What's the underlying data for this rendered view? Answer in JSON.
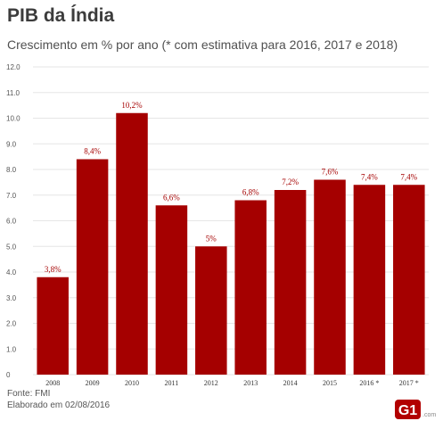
{
  "header": {
    "title": "PIB da Índia",
    "subtitle": "Crescimento em % por ano (* com estimativa para 2016, 2017 e 2018)"
  },
  "footer": {
    "source": "Fonte: FMI",
    "date": "Elaborado em 02/08/2016"
  },
  "brand": {
    "logo_text": "G1",
    "logo_suffix": ".com"
  },
  "colors": {
    "bar": "#a50000",
    "label": "#a50000",
    "grid": "#e6e6e6",
    "axis_text": "#555555"
  },
  "chart_data": {
    "type": "bar",
    "title": "PIB da Índia",
    "subtitle": "Crescimento em % por ano (* com estimativa para 2016, 2017 e 2018)",
    "categories": [
      "2008",
      "2009",
      "2010",
      "2011",
      "2012",
      "2013",
      "2014",
      "2015",
      "2016 *",
      "2017 *"
    ],
    "values": [
      3.8,
      8.4,
      10.2,
      6.6,
      5.0,
      6.8,
      7.2,
      7.6,
      7.4,
      7.4
    ],
    "value_labels": [
      "3,8%",
      "8,4%",
      "10,2%",
      "6,6%",
      "5%",
      "6,8%",
      "7,2%",
      "7,6%",
      "7,4%",
      "7,4%"
    ],
    "ylim": [
      0,
      12
    ],
    "yticks": [
      "0",
      "1.0",
      "2.0",
      "3.0",
      "4.0",
      "5.0",
      "6.0",
      "7.0",
      "8.0",
      "9.0",
      "10.0",
      "11.0",
      "12.0"
    ],
    "grid": true,
    "xlabel": "",
    "ylabel": ""
  }
}
